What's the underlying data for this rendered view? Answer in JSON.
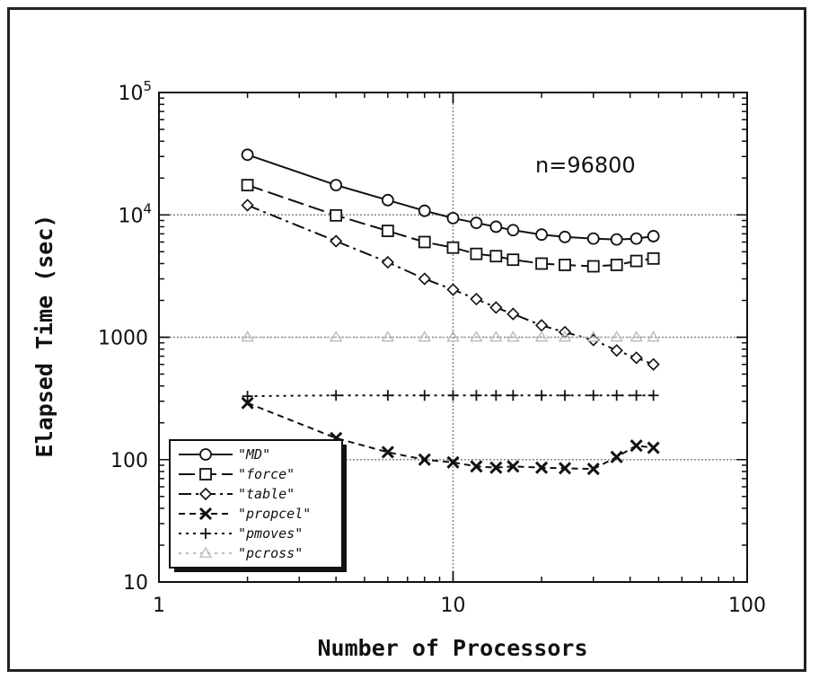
{
  "chart_data": {
    "type": "line",
    "xscale": "log",
    "yscale": "log",
    "xlim": [
      1,
      100
    ],
    "ylim": [
      10,
      100000
    ],
    "xlabel": "Number of Processors",
    "ylabel": "Elapsed Time (sec)",
    "x_ticks": [
      "1",
      "10",
      "100"
    ],
    "y_ticks": [
      "10",
      "100",
      "1000",
      "10^4",
      "10^5"
    ],
    "annotation": "n=96800",
    "grid": true,
    "legend_position": "bottom-left",
    "series": [
      {
        "name": "\"MD\"",
        "marker": "circle",
        "dash": "solid",
        "color": "#111111",
        "points": [
          [
            2,
            31000
          ],
          [
            4,
            17500
          ],
          [
            6,
            13200
          ],
          [
            8,
            10800
          ],
          [
            10,
            9400
          ],
          [
            12,
            8600
          ],
          [
            14,
            8000
          ],
          [
            16,
            7500
          ],
          [
            20,
            6900
          ],
          [
            24,
            6600
          ],
          [
            30,
            6400
          ],
          [
            36,
            6300
          ],
          [
            42,
            6400
          ],
          [
            48,
            6700
          ]
        ]
      },
      {
        "name": "\"force\"",
        "marker": "square",
        "dash": "longdash",
        "color": "#111111",
        "points": [
          [
            2,
            17500
          ],
          [
            4,
            9900
          ],
          [
            6,
            7400
          ],
          [
            8,
            6000
          ],
          [
            10,
            5400
          ],
          [
            12,
            4800
          ],
          [
            14,
            4600
          ],
          [
            16,
            4300
          ],
          [
            20,
            4000
          ],
          [
            24,
            3900
          ],
          [
            30,
            3800
          ],
          [
            36,
            3900
          ],
          [
            42,
            4200
          ],
          [
            48,
            4400
          ]
        ]
      },
      {
        "name": "\"table\"",
        "marker": "diamond",
        "dash": "dashdot",
        "color": "#111111",
        "points": [
          [
            2,
            12000
          ],
          [
            4,
            6100
          ],
          [
            6,
            4100
          ],
          [
            8,
            3000
          ],
          [
            10,
            2450
          ],
          [
            12,
            2050
          ],
          [
            14,
            1750
          ],
          [
            16,
            1550
          ],
          [
            20,
            1250
          ],
          [
            24,
            1100
          ],
          [
            30,
            950
          ],
          [
            36,
            780
          ],
          [
            42,
            680
          ],
          [
            48,
            600
          ]
        ]
      },
      {
        "name": "\"propcel\"",
        "marker": "x",
        "dash": "shortdash",
        "color": "#111111",
        "points": [
          [
            2,
            290
          ],
          [
            4,
            150
          ],
          [
            6,
            115
          ],
          [
            8,
            100
          ],
          [
            10,
            95
          ],
          [
            12,
            88
          ],
          [
            14,
            86
          ],
          [
            16,
            88
          ],
          [
            20,
            86
          ],
          [
            24,
            85
          ],
          [
            30,
            84
          ],
          [
            36,
            105
          ],
          [
            42,
            130
          ],
          [
            48,
            125
          ]
        ]
      },
      {
        "name": "\"pmoves\"",
        "marker": "plus",
        "dash": "dotted",
        "color": "#111111",
        "points": [
          [
            2,
            330
          ],
          [
            4,
            335
          ],
          [
            6,
            335
          ],
          [
            8,
            335
          ],
          [
            10,
            335
          ],
          [
            12,
            335
          ],
          [
            14,
            335
          ],
          [
            16,
            335
          ],
          [
            20,
            335
          ],
          [
            24,
            335
          ],
          [
            30,
            335
          ],
          [
            36,
            335
          ],
          [
            42,
            335
          ],
          [
            48,
            335
          ]
        ]
      },
      {
        "name": "\"pcross\"",
        "marker": "triangle",
        "dash": "dotted",
        "color": "#bbbbbb",
        "points": [
          [
            2,
            1000
          ],
          [
            4,
            1000
          ],
          [
            6,
            1000
          ],
          [
            8,
            1000
          ],
          [
            10,
            1000
          ],
          [
            12,
            1000
          ],
          [
            14,
            1000
          ],
          [
            16,
            1000
          ],
          [
            20,
            1000
          ],
          [
            24,
            1000
          ],
          [
            30,
            1000
          ],
          [
            36,
            1000
          ],
          [
            42,
            1000
          ],
          [
            48,
            1000
          ]
        ]
      }
    ]
  }
}
